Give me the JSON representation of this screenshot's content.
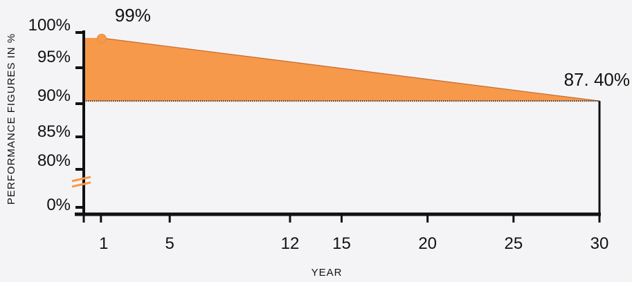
{
  "chart_data": {
    "type": "area",
    "title": "",
    "xlabel": "YEAR",
    "ylabel": "PERFORMANCE FIGURES IN %",
    "x_ticks": [
      1,
      5,
      12,
      15,
      20,
      25,
      30
    ],
    "y_tick_labels": [
      "100%",
      "95%",
      "90%",
      "85%",
      "80%",
      "0%"
    ],
    "y_axis_break": true,
    "grid": false,
    "series": [
      {
        "x": [
          1,
          30
        ],
        "y": [
          99,
          87.4
        ]
      }
    ],
    "baseline": 87.4,
    "annotations": [
      {
        "x": 1,
        "y": 99,
        "label": "99%"
      },
      {
        "x": 30,
        "y": 87.4,
        "label": "87. 40%"
      }
    ],
    "colors": {
      "fill": "#f7994a",
      "line": "#c8682b",
      "axis": "#111111",
      "break_mark": "#f7994a"
    }
  }
}
